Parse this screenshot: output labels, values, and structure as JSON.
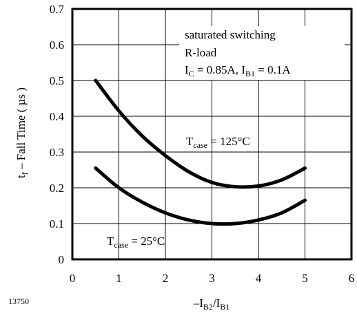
{
  "chart_data": {
    "type": "line",
    "title": "",
    "xlabel": {
      "main": "–I",
      "sub1": "B2",
      "mid": "/I",
      "sub2": "B1"
    },
    "ylabel": {
      "pre": "t",
      "sub": "f",
      "post": " – Fall Time ( µs )"
    },
    "xlim": [
      0,
      6
    ],
    "ylim": [
      0,
      0.7
    ],
    "x_ticks": [
      "0",
      "1",
      "2",
      "3",
      "4",
      "5",
      "6"
    ],
    "y_ticks": [
      "0",
      "0.1",
      "0.2",
      "0.3",
      "0.4",
      "0.5",
      "0.6",
      "0.7"
    ],
    "grid": true,
    "series": [
      {
        "name": "Tcase = 125°C",
        "x": [
          0.5,
          1,
          1.5,
          2,
          2.5,
          3,
          3.5,
          4,
          4.5,
          5
        ],
        "y": [
          0.5,
          0.415,
          0.345,
          0.29,
          0.245,
          0.215,
          0.203,
          0.205,
          0.222,
          0.255
        ]
      },
      {
        "name": "Tcase = 25°C",
        "x": [
          0.5,
          1,
          1.5,
          2,
          2.5,
          3,
          3.5,
          4,
          4.5,
          5
        ],
        "y": [
          0.255,
          0.2,
          0.16,
          0.13,
          0.11,
          0.1,
          0.1,
          0.11,
          0.13,
          0.165
        ]
      }
    ],
    "annotations": [
      {
        "id": "cond1",
        "text": "saturated switching"
      },
      {
        "id": "cond2",
        "text": "R-load"
      },
      {
        "id": "cond3",
        "parts": [
          "I",
          "C",
          " = 0.85A, I",
          "B1",
          " = 0.1A"
        ]
      },
      {
        "id": "label125",
        "parts": [
          "T",
          "case",
          " = 125°C"
        ]
      },
      {
        "id": "label25",
        "parts": [
          "T",
          "case",
          " = 25°C"
        ]
      }
    ],
    "figure_id": "13750"
  }
}
